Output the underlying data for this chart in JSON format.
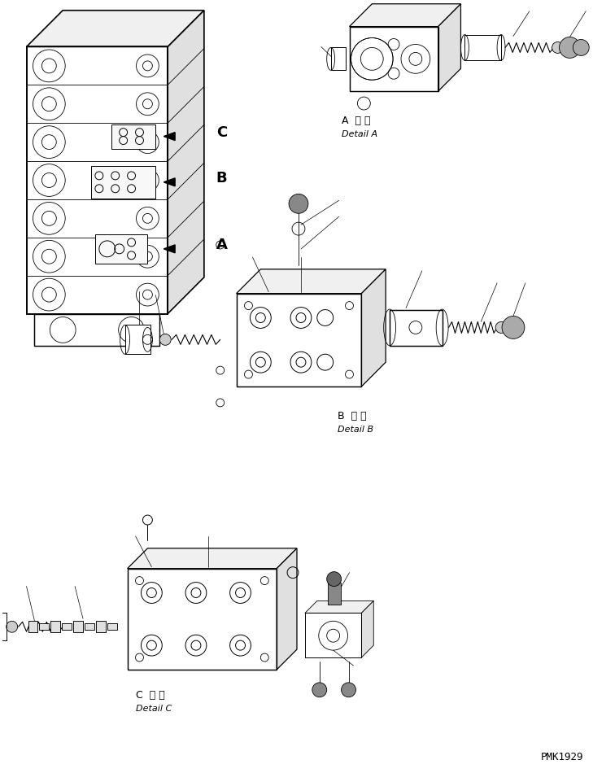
{
  "bg_color": "#ffffff",
  "line_color": "#000000",
  "fig_width": 7.29,
  "fig_height": 9.5,
  "dpi": 100,
  "watermark": "PMK1929",
  "labels": {
    "detail_a_ja": "A  詳 細",
    "detail_a_en": "Detail A",
    "detail_b_ja": "B  詳 細",
    "detail_b_en": "Detail B",
    "detail_c_ja": "C  詳 細",
    "detail_c_en": "Detail C"
  }
}
